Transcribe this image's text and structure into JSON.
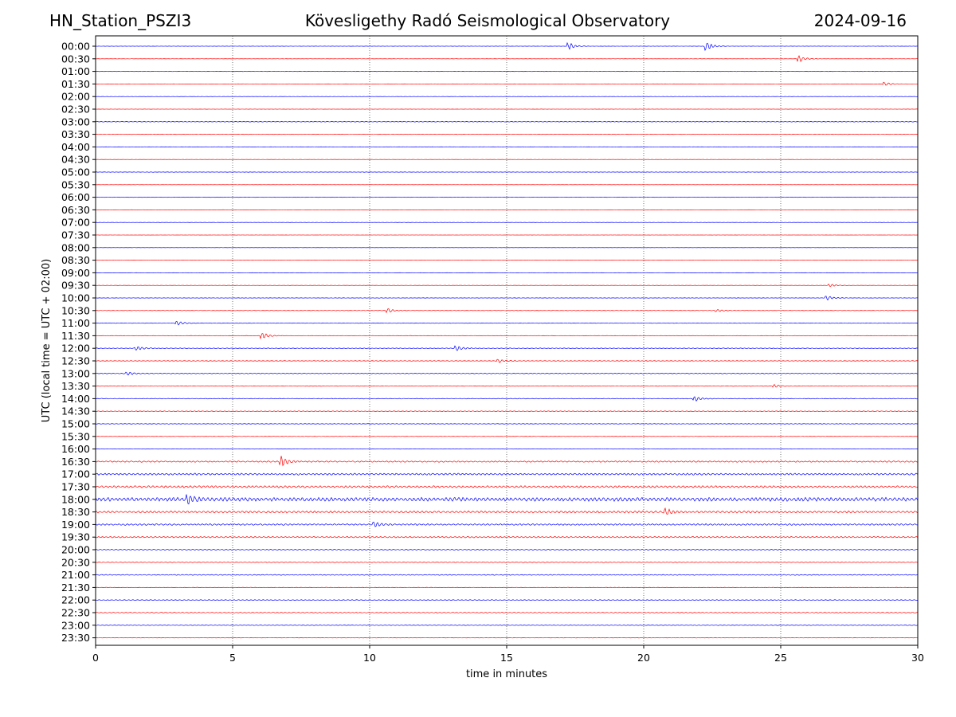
{
  "header": {
    "station": "HN_Station_PSZI3",
    "observatory": "Kövesligethy Radó Seismological Observatory",
    "date": "2024-09-16"
  },
  "chart_data": {
    "type": "line",
    "title": "Kövesligethy Radó Seismological Observatory",
    "xlabel": "time in minutes",
    "ylabel": "UTC (local time = UTC + 02:00)",
    "xlim": [
      0,
      30
    ],
    "xticks": [
      0,
      5,
      10,
      15,
      20,
      25,
      30
    ],
    "vertical_gridlines_at": [
      5,
      10,
      15,
      20,
      25
    ],
    "row_labels": [
      "00:00",
      "00:30",
      "01:00",
      "01:30",
      "02:00",
      "02:30",
      "03:00",
      "03:30",
      "04:00",
      "04:30",
      "05:00",
      "05:30",
      "06:00",
      "06:30",
      "07:00",
      "07:30",
      "08:00",
      "08:30",
      "09:00",
      "09:30",
      "10:00",
      "10:30",
      "11:00",
      "11:30",
      "12:00",
      "12:30",
      "13:00",
      "13:30",
      "14:00",
      "14:30",
      "15:00",
      "15:30",
      "16:00",
      "16:30",
      "17:00",
      "17:30",
      "18:00",
      "18:30",
      "19:00",
      "19:30",
      "20:00",
      "20:30",
      "21:00",
      "21:30",
      "22:00",
      "22:30",
      "23:00",
      "23:30"
    ],
    "trace_colors": [
      "#0000ff",
      "#ff0000"
    ],
    "noise_level": [
      0.05,
      0.05,
      0.08,
      0.05,
      0.05,
      0.04,
      0.12,
      0.08,
      0.06,
      0.04,
      0.08,
      0.04,
      0.06,
      0.04,
      0.05,
      0.03,
      0.04,
      0.03,
      0.05,
      0.05,
      0.08,
      0.07,
      0.1,
      0.08,
      0.15,
      0.12,
      0.16,
      0.1,
      0.14,
      0.16,
      0.12,
      0.06,
      0.06,
      0.3,
      0.4,
      0.45,
      0.8,
      0.45,
      0.35,
      0.3,
      0.22,
      0.15,
      0.2,
      0.1,
      0.16,
      0.16,
      0.14,
      0.08
    ],
    "events": [
      {
        "row": "00:00",
        "minute": 17.3,
        "amplitude": 2.0
      },
      {
        "row": "00:00",
        "minute": 22.3,
        "amplitude": 3.0
      },
      {
        "row": "00:30",
        "minute": 25.7,
        "amplitude": 2.0
      },
      {
        "row": "01:30",
        "minute": 28.8,
        "amplitude": 1.2
      },
      {
        "row": "09:30",
        "minute": 26.8,
        "amplitude": 1.0
      },
      {
        "row": "10:00",
        "minute": 26.7,
        "amplitude": 1.5
      },
      {
        "row": "10:30",
        "minute": 10.7,
        "amplitude": 1.3
      },
      {
        "row": "10:30",
        "minute": 22.7,
        "amplitude": 1.0
      },
      {
        "row": "11:00",
        "minute": 3.0,
        "amplitude": 1.5
      },
      {
        "row": "11:30",
        "minute": 6.1,
        "amplitude": 2.0
      },
      {
        "row": "12:00",
        "minute": 1.5,
        "amplitude": 1.5
      },
      {
        "row": "12:00",
        "minute": 13.2,
        "amplitude": 1.5
      },
      {
        "row": "12:30",
        "minute": 14.7,
        "amplitude": 1.2
      },
      {
        "row": "13:00",
        "minute": 1.2,
        "amplitude": 1.0
      },
      {
        "row": "13:30",
        "minute": 24.8,
        "amplitude": 1.0
      },
      {
        "row": "14:00",
        "minute": 21.9,
        "amplitude": 1.5
      },
      {
        "row": "16:30",
        "minute": 6.8,
        "amplitude": 3.0
      },
      {
        "row": "18:00",
        "minute": 3.4,
        "amplitude": 2.5
      },
      {
        "row": "18:30",
        "minute": 20.8,
        "amplitude": 2.0
      },
      {
        "row": "19:00",
        "minute": 10.2,
        "amplitude": 1.5
      }
    ]
  }
}
